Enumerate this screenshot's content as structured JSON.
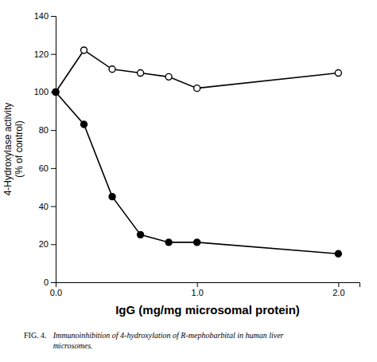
{
  "chart_data": {
    "type": "line",
    "xlabel": "IgG (mg/mg microsomal protein)",
    "ylabel": "4-Hydroxylase activity\n(% of control)",
    "x": [
      0.0,
      0.2,
      0.4,
      0.6,
      0.8,
      1.0,
      2.0
    ],
    "series": [
      {
        "values": [
          100,
          122,
          112,
          110,
          108,
          102,
          110
        ],
        "color": "#000000",
        "marker": "circle-open"
      },
      {
        "values": [
          100,
          83,
          45,
          25,
          21,
          21,
          15
        ],
        "color": "#000000",
        "marker": "circle"
      }
    ],
    "xlim": [
      0.0,
      2.15
    ],
    "ylim": [
      0,
      140
    ],
    "xticks": [
      {
        "value": 0.0,
        "label": "0.0"
      },
      {
        "value": 1.0,
        "label": "1.0"
      },
      {
        "value": 2.0,
        "label": "2.0"
      }
    ],
    "yticks": [
      0,
      20,
      40,
      60,
      80,
      100,
      120,
      140
    ],
    "grid": false,
    "annotations": [
      "FIG. 4.",
      "Immunoinhibition of 4-hydroxylation of R-mephobarbital in human liver\nmicrosomes."
    ]
  }
}
